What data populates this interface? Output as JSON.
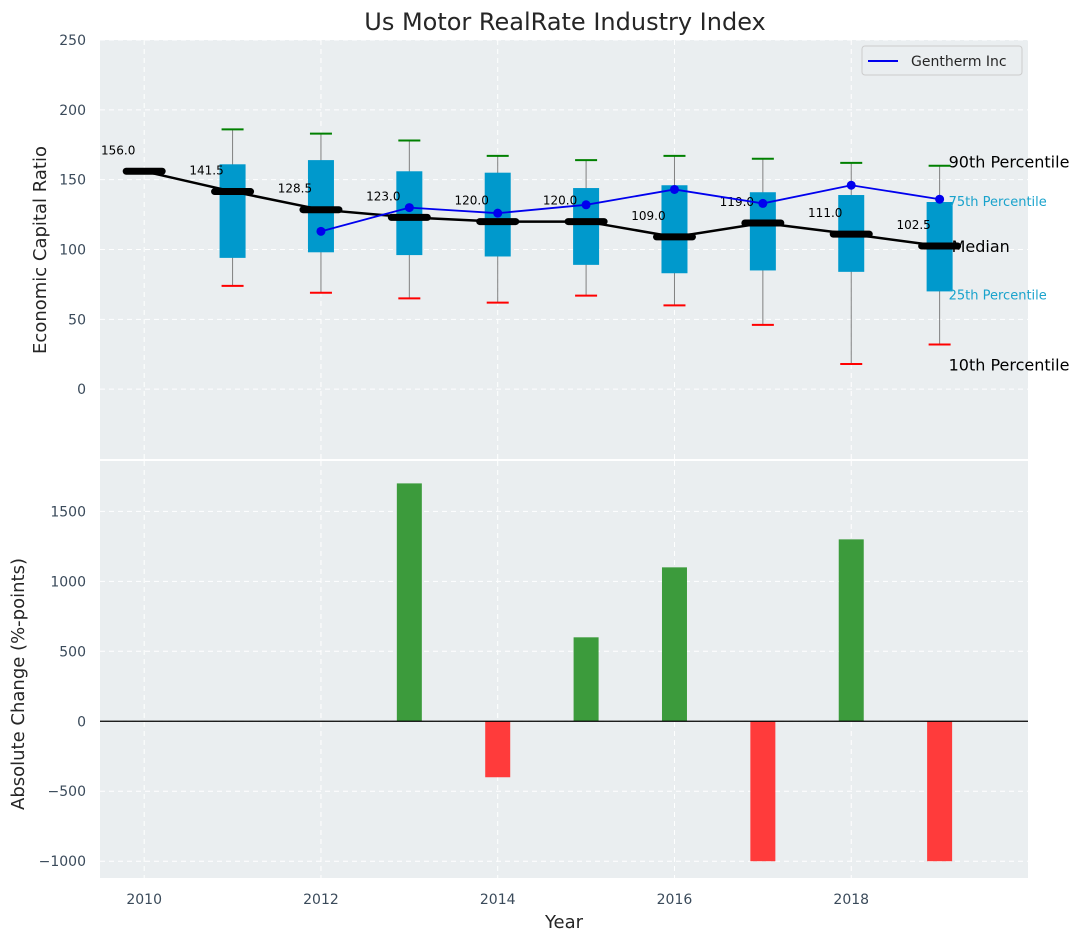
{
  "colors": {
    "panel_bg": "#eaeef0",
    "grid": "#ffffff",
    "box_fill": "#0099cc",
    "whisker": "#808080",
    "cap_high": "#008000",
    "cap_low": "#ff0000",
    "median_line": "#000000",
    "company_line": "#0000ee",
    "bar_pos": "#3c9b3c",
    "bar_neg": "#ff3b3b"
  },
  "chart_data": [
    {
      "type": "box",
      "title": "Us Motor RealRate Industry Index",
      "xlabel": "",
      "ylabel": "Economic Capital Ratio",
      "xlim": [
        2009.5,
        2020
      ],
      "ylim": [
        -50,
        250
      ],
      "yticks": [
        0,
        50,
        100,
        150,
        200,
        250
      ],
      "grid": true,
      "legend": {
        "position": "top-right",
        "entries": [
          "Gentherm Inc"
        ]
      },
      "median": {
        "x": [
          2010,
          2011,
          2012,
          2013,
          2014,
          2015,
          2016,
          2017,
          2018,
          2019
        ],
        "values": [
          156.0,
          141.5,
          128.5,
          123.0,
          120.0,
          120.0,
          109.0,
          119.0,
          111.0,
          102.5
        ],
        "labels": [
          "156.0",
          "141.5",
          "128.5",
          "123.0",
          "120.0",
          "120.0",
          "109.0",
          "119.0",
          "111.0",
          "102.5"
        ]
      },
      "boxes": [
        {
          "x": 2011,
          "p10": 74,
          "q1": 94,
          "q3": 161,
          "p90": 186
        },
        {
          "x": 2012,
          "p10": 69,
          "q1": 98,
          "q3": 164,
          "p90": 183
        },
        {
          "x": 2013,
          "p10": 65,
          "q1": 96,
          "q3": 156,
          "p90": 178
        },
        {
          "x": 2014,
          "p10": 62,
          "q1": 95,
          "q3": 155,
          "p90": 167
        },
        {
          "x": 2015,
          "p10": 67,
          "q1": 89,
          "q3": 144,
          "p90": 164
        },
        {
          "x": 2016,
          "p10": 60,
          "q1": 83,
          "q3": 146,
          "p90": 167
        },
        {
          "x": 2017,
          "p10": 46,
          "q1": 85,
          "q3": 141,
          "p90": 165
        },
        {
          "x": 2018,
          "p10": 18,
          "q1": 84,
          "q3": 139,
          "p90": 162
        },
        {
          "x": 2019,
          "p10": 32,
          "q1": 70,
          "q3": 134,
          "p90": 160
        }
      ],
      "series": [
        {
          "name": "Gentherm Inc",
          "x": [
            2012,
            2013,
            2014,
            2015,
            2016,
            2017,
            2018,
            2019
          ],
          "values": [
            113,
            130,
            126,
            132,
            143,
            133,
            146,
            136
          ]
        }
      ],
      "annotations": {
        "p90": "90th Percentile",
        "q3": "75th Percentile",
        "median": "Median",
        "q1": "25th Percentile",
        "p10": "10th Percentile"
      }
    },
    {
      "type": "bar",
      "xlabel": "Year",
      "ylabel": "Absolute Change (%-points)",
      "xlim": [
        2009.5,
        2020
      ],
      "ylim": [
        -1120,
        1860
      ],
      "yticks": [
        -1000,
        -500,
        0,
        500,
        1000,
        1500
      ],
      "xticks": [
        2010,
        2012,
        2014,
        2016,
        2018
      ],
      "grid": true,
      "x": [
        2013,
        2014,
        2015,
        2016,
        2017,
        2018,
        2019
      ],
      "values": [
        1700,
        -400,
        600,
        1100,
        -1000,
        1300,
        -1000
      ]
    }
  ]
}
